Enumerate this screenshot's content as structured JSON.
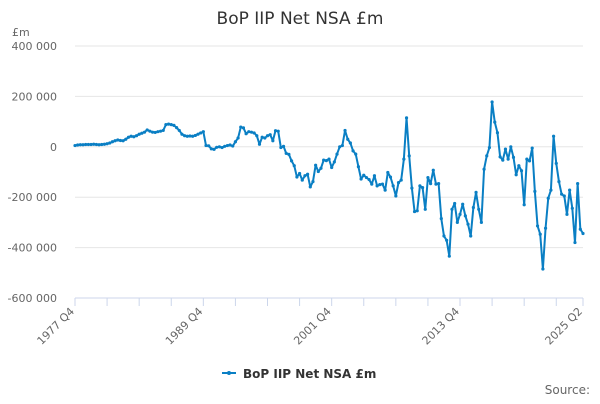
{
  "chart_data": {
    "type": "line",
    "title": "BoP IIP Net NSA £m",
    "ylabel": "£m",
    "xlabel": "",
    "ylim": [
      -600000,
      400000
    ],
    "yticks": [
      400000,
      200000,
      0,
      -200000,
      -400000,
      -600000
    ],
    "ytick_labels": [
      "400 000",
      "200 000",
      "0",
      "-200 000",
      "-400 000",
      "-600 000"
    ],
    "xtick_labels": [
      "1977 Q4",
      "1989 Q4",
      "2001 Q4",
      "2013 Q4",
      "2025 Q2"
    ],
    "grid": "horizontal",
    "legend_position": "bottom",
    "color": "#0a7fc4",
    "x": [
      "1977 Q4",
      "1978 Q1",
      "1978 Q2",
      "1978 Q3",
      "1978 Q4",
      "1979 Q1",
      "1979 Q2",
      "1979 Q3",
      "1979 Q4",
      "1980 Q1",
      "1980 Q2",
      "1980 Q3",
      "1980 Q4",
      "1981 Q1",
      "1981 Q2",
      "1981 Q3",
      "1981 Q4",
      "1982 Q1",
      "1982 Q2",
      "1982 Q3",
      "1982 Q4",
      "1983 Q1",
      "1983 Q2",
      "1983 Q3",
      "1983 Q4",
      "1984 Q1",
      "1984 Q2",
      "1984 Q3",
      "1984 Q4",
      "1985 Q1",
      "1985 Q2",
      "1985 Q3",
      "1985 Q4",
      "1986 Q1",
      "1986 Q2",
      "1986 Q3",
      "1986 Q4",
      "1987 Q1",
      "1987 Q2",
      "1987 Q3",
      "1987 Q4",
      "1988 Q1",
      "1988 Q2",
      "1988 Q3",
      "1988 Q4",
      "1989 Q1",
      "1989 Q2",
      "1989 Q3",
      "1989 Q4",
      "1990 Q1",
      "1990 Q2",
      "1990 Q3",
      "1990 Q4",
      "1991 Q1",
      "1991 Q2",
      "1991 Q3",
      "1991 Q4",
      "1992 Q1",
      "1992 Q2",
      "1992 Q3",
      "1992 Q4",
      "1993 Q1",
      "1993 Q2",
      "1993 Q3",
      "1993 Q4",
      "1994 Q1",
      "1994 Q2",
      "1994 Q3",
      "1994 Q4",
      "1995 Q1",
      "1995 Q2",
      "1995 Q3",
      "1995 Q4",
      "1996 Q1",
      "1996 Q2",
      "1996 Q3",
      "1996 Q4",
      "1997 Q1",
      "1997 Q2",
      "1997 Q3",
      "1997 Q4",
      "1998 Q1",
      "1998 Q2",
      "1998 Q3",
      "1998 Q4",
      "1999 Q1",
      "1999 Q2",
      "1999 Q3",
      "1999 Q4",
      "2000 Q1",
      "2000 Q2",
      "2000 Q3",
      "2000 Q4",
      "2001 Q1",
      "2001 Q2",
      "2001 Q3",
      "2001 Q4",
      "2002 Q1",
      "2002 Q2",
      "2002 Q3",
      "2002 Q4",
      "2003 Q1",
      "2003 Q2",
      "2003 Q3",
      "2003 Q4",
      "2004 Q1",
      "2004 Q2",
      "2004 Q3",
      "2004 Q4",
      "2005 Q1",
      "2005 Q2",
      "2005 Q3",
      "2005 Q4",
      "2006 Q1",
      "2006 Q2",
      "2006 Q3",
      "2006 Q4",
      "2007 Q1",
      "2007 Q2",
      "2007 Q3",
      "2007 Q4",
      "2008 Q1",
      "2008 Q2",
      "2008 Q3",
      "2008 Q4",
      "2009 Q1",
      "2009 Q2",
      "2009 Q3",
      "2009 Q4",
      "2010 Q1",
      "2010 Q2",
      "2010 Q3",
      "2010 Q4",
      "2011 Q1",
      "2011 Q2",
      "2011 Q3",
      "2011 Q4",
      "2012 Q1",
      "2012 Q2",
      "2012 Q3",
      "2012 Q4",
      "2013 Q1",
      "2013 Q2",
      "2013 Q3",
      "2013 Q4",
      "2014 Q1",
      "2014 Q2",
      "2014 Q3",
      "2014 Q4",
      "2015 Q1",
      "2015 Q2",
      "2015 Q3",
      "2015 Q4",
      "2016 Q1",
      "2016 Q2",
      "2016 Q3",
      "2016 Q4",
      "2017 Q1",
      "2017 Q2",
      "2017 Q3",
      "2017 Q4",
      "2018 Q1",
      "2018 Q2",
      "2018 Q3",
      "2018 Q4",
      "2019 Q1",
      "2019 Q2",
      "2019 Q3",
      "2019 Q4",
      "2020 Q1",
      "2020 Q2",
      "2020 Q3",
      "2020 Q4",
      "2021 Q1",
      "2021 Q2",
      "2021 Q3",
      "2021 Q4",
      "2022 Q1",
      "2022 Q2",
      "2022 Q3",
      "2022 Q4",
      "2023 Q1",
      "2023 Q2",
      "2023 Q3",
      "2023 Q4",
      "2024 Q1",
      "2024 Q2",
      "2024 Q3",
      "2024 Q4",
      "2025 Q1",
      "2025 Q2"
    ],
    "series": [
      {
        "name": "BoP IIP Net NSA £m",
        "values": [
          5000,
          7000,
          8000,
          8000,
          9000,
          9000,
          9000,
          10000,
          9000,
          8000,
          9000,
          10000,
          12000,
          15000,
          20000,
          24000,
          27000,
          25000,
          24000,
          30000,
          38000,
          42000,
          40000,
          44000,
          50000,
          54000,
          58000,
          67000,
          62000,
          58000,
          57000,
          60000,
          62000,
          65000,
          88000,
          90000,
          88000,
          85000,
          76000,
          65000,
          50000,
          44000,
          42000,
          43000,
          42000,
          45000,
          50000,
          55000,
          60000,
          5000,
          4000,
          -8000,
          -10000,
          -2000,
          0,
          -3000,
          2000,
          5000,
          7000,
          3000,
          20000,
          35000,
          78000,
          75000,
          52000,
          60000,
          58000,
          55000,
          44000,
          10000,
          38000,
          35000,
          44000,
          48000,
          24000,
          64000,
          62000,
          -3000,
          2000,
          -26000,
          -30000,
          -56000,
          -75000,
          -120000,
          -106000,
          -132000,
          -115000,
          -109000,
          -159000,
          -138000,
          -73000,
          -98000,
          -85000,
          -53000,
          -55000,
          -49000,
          -82000,
          -60000,
          -29000,
          0,
          5000,
          65000,
          30000,
          15000,
          -16000,
          -29000,
          -79000,
          -128000,
          -113000,
          -122000,
          -130000,
          -148000,
          -115000,
          -155000,
          -150000,
          -148000,
          -172000,
          -102000,
          -120000,
          -155000,
          -195000,
          -142000,
          -132000,
          -49000,
          115000,
          -36000,
          -164000,
          -257000,
          -254000,
          -155000,
          -162000,
          -248000,
          -122000,
          -146000,
          -93000,
          -148000,
          -146000,
          -285000,
          -354000,
          -371000,
          -434000,
          -248000,
          -225000,
          -300000,
          -268000,
          -228000,
          -274000,
          -307000,
          -354000,
          -241000,
          -181000,
          -248000,
          -300000,
          -89000,
          -36000,
          -3000,
          178000,
          98000,
          56000,
          -40000,
          -53000,
          -9000,
          -49000,
          0,
          -42000,
          -111000,
          -75000,
          -95000,
          -230000,
          -49000,
          -56000,
          -5000,
          -177000,
          -314000,
          -347000,
          -485000,
          -323000,
          -204000,
          -172000,
          42000,
          -66000,
          -138000,
          -188000,
          -195000,
          -268000,
          -172000,
          -244000,
          -380000,
          -146000,
          -327000,
          -344000
        ]
      }
    ]
  },
  "source_label": "Source:"
}
